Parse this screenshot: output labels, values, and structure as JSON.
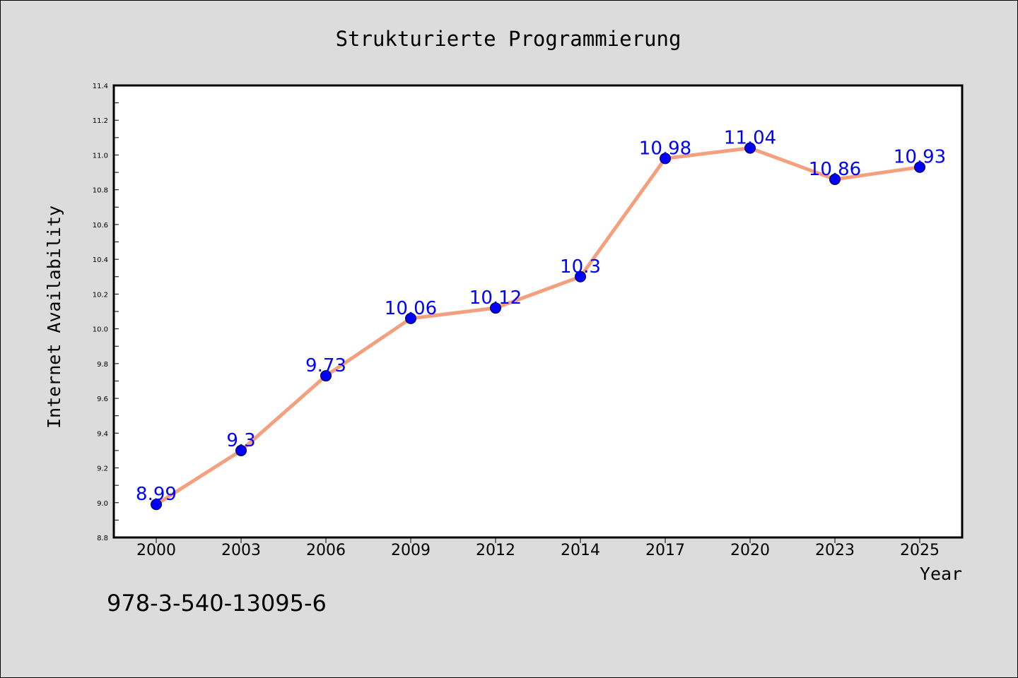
{
  "chart_data": {
    "type": "line",
    "title": "Strukturierte Programmierung",
    "xlabel": "Year",
    "ylabel": "Internet Availability",
    "categories": [
      "2000",
      "2003",
      "2006",
      "2009",
      "2012",
      "2014",
      "2017",
      "2020",
      "2023",
      "2025"
    ],
    "series": [
      {
        "values": [
          8.99,
          9.3,
          9.73,
          10.06,
          10.12,
          10.3,
          10.98,
          11.04,
          10.86,
          10.93
        ]
      }
    ],
    "data_labels": [
      "8.99",
      "9.3",
      "9.73",
      "10.06",
      "10.12",
      "10.3",
      "10.98",
      "11.04",
      "10.86",
      "10.93"
    ],
    "ylim": [
      8.8,
      11.4
    ],
    "yticks": [
      "8.8",
      "9.0",
      "9.2",
      "9.4",
      "9.6",
      "9.8",
      "10.0",
      "10.2",
      "10.4",
      "10.6",
      "10.8",
      "11.0",
      "11.2",
      "11.4"
    ],
    "grid": false,
    "line_color": "#f4a07e",
    "marker_color": "#0000ff",
    "label_color": "#0000ff"
  },
  "footnote": "978-3-540-13095-6"
}
